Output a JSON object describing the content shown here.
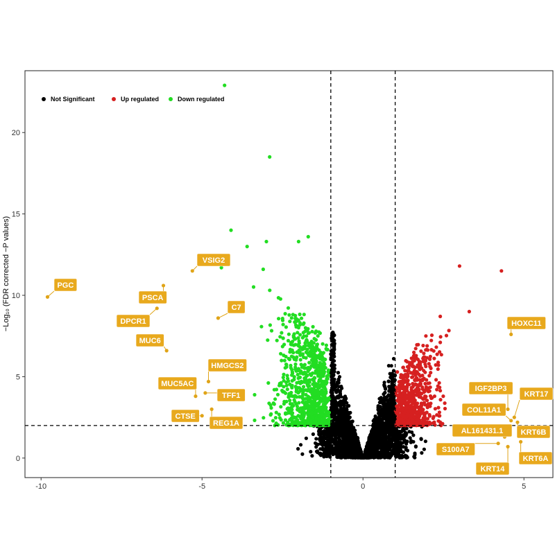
{
  "chart_data": {
    "type": "scatter",
    "title": "",
    "xlabel": "",
    "ylabel": "−Log₁₀ (FDR corrected −P values)",
    "xlim": [
      -10.5,
      5.9
    ],
    "ylim": [
      -1.2,
      23.8
    ],
    "xticks": [
      -10,
      -5,
      0,
      5
    ],
    "yticks": [
      0,
      5,
      10,
      15,
      20
    ],
    "thresholds": {
      "logfc": [
        -1,
        1
      ],
      "neg_log10_fdr": 2
    },
    "grid": false,
    "legend": {
      "position": "top-left",
      "entries": [
        {
          "name": "Not Significant",
          "color": "#000000"
        },
        {
          "name": "Up regulated",
          "color": "#d62020"
        },
        {
          "name": "Down regulated",
          "color": "#22dd22"
        }
      ]
    },
    "series": [
      {
        "name": "Not Significant",
        "color": "#000000",
        "description": "dense V-shaped cloud around x=0; most points below y=2 or with |log2FC|<1",
        "points": [
          [
            0,
            0
          ],
          [
            -0.3,
            0.3
          ],
          [
            0.3,
            0.3
          ],
          [
            -0.6,
            0.9
          ],
          [
            0.6,
            0.9
          ],
          [
            -1.5,
            0.5
          ],
          [
            1.5,
            0.5
          ],
          [
            -2.5,
            0.8
          ],
          [
            2.5,
            0.8
          ],
          [
            -1,
            5
          ],
          [
            0.95,
            3.5
          ]
        ]
      },
      {
        "name": "Up regulated",
        "color": "#d62020",
        "highlighted_points": [
          [
            3.0,
            11.8
          ],
          [
            4.3,
            11.5
          ],
          [
            4.6,
            8.5
          ],
          [
            3.3,
            9.0
          ],
          [
            2.4,
            8.7
          ]
        ]
      },
      {
        "name": "Down regulated",
        "color": "#22dd22",
        "highlighted_points": [
          [
            -4.3,
            22.9
          ],
          [
            -2.9,
            18.5
          ],
          [
            -4.1,
            14.0
          ],
          [
            -3.6,
            13.0
          ],
          [
            -3.0,
            13.3
          ],
          [
            -2.0,
            13.3
          ],
          [
            -1.7,
            13.6
          ],
          [
            -4.3,
            12.1
          ],
          [
            -4.4,
            11.7
          ],
          [
            -3.1,
            11.6
          ]
        ]
      }
    ],
    "annotations": [
      {
        "label": "PGC",
        "x": -9.8,
        "y": 9.9
      },
      {
        "label": "PSCA",
        "x": -6.2,
        "y": 10.6
      },
      {
        "label": "DPCR1",
        "x": -6.4,
        "y": 9.2
      },
      {
        "label": "MUC6",
        "x": -6.1,
        "y": 6.6
      },
      {
        "label": "VSIG2",
        "x": -5.3,
        "y": 11.5
      },
      {
        "label": "C7",
        "x": -4.5,
        "y": 8.6
      },
      {
        "label": "HMGCS2",
        "x": -4.8,
        "y": 4.7
      },
      {
        "label": "MUC5AC",
        "x": -5.2,
        "y": 3.8
      },
      {
        "label": "TFF1",
        "x": -4.9,
        "y": 4.0
      },
      {
        "label": "CTSE",
        "x": -5.0,
        "y": 2.6
      },
      {
        "label": "REG1A",
        "x": -4.7,
        "y": 3.0
      },
      {
        "label": "HOXC11",
        "x": 4.6,
        "y": 7.6
      },
      {
        "label": "IGF2BP3",
        "x": 4.5,
        "y": 3.0
      },
      {
        "label": "KRT17",
        "x": 4.7,
        "y": 2.5
      },
      {
        "label": "COL11A1",
        "x": 4.6,
        "y": 2.3
      },
      {
        "label": "AL161431.1",
        "x": 4.4,
        "y": 1.3
      },
      {
        "label": "KRT6B",
        "x": 4.8,
        "y": 2.2
      },
      {
        "label": "S100A7",
        "x": 4.2,
        "y": 0.9
      },
      {
        "label": "KRT14",
        "x": 4.5,
        "y": 0.7
      },
      {
        "label": "KRT6A",
        "x": 4.9,
        "y": 1.0
      }
    ]
  }
}
